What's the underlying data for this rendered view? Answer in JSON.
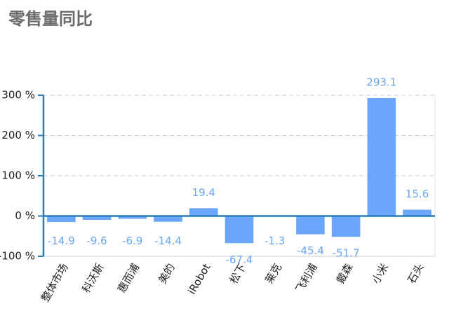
{
  "chart_data": {
    "type": "bar",
    "title": "零售量同比",
    "categories": [
      "整体市场",
      "科沃斯",
      "惠而浦",
      "美的",
      "iRobot",
      "松下",
      "莱克",
      "飞利浦",
      "戴森",
      "小米",
      "石头"
    ],
    "values": [
      -14.9,
      -9.6,
      -6.9,
      -14.4,
      19.4,
      -67.4,
      -1.3,
      -45.4,
      -51.7,
      293.1,
      15.6
    ],
    "color": "#6aa6fb",
    "ylim": [
      -100,
      300
    ],
    "yticks": [
      {
        "value": -100,
        "label": "-100 %"
      },
      {
        "value": 0,
        "label": "0 %"
      },
      {
        "value": 100,
        "label": "100 %"
      },
      {
        "value": 200,
        "label": "200 %"
      },
      {
        "value": 300,
        "label": "300 %"
      }
    ],
    "grid": true
  }
}
